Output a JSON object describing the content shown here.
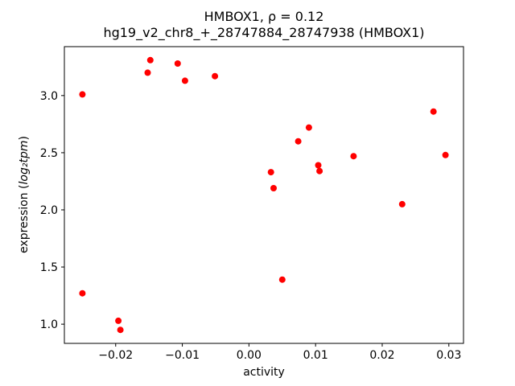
{
  "chart_data": {
    "type": "scatter",
    "title_line1": "HMBOX1, ρ = 0.12",
    "title_line2": "hg19_v2_chr8_+_28747884_28747938 (HMBOX1)",
    "xlabel": "activity",
    "ylabel_prefix": "expression (",
    "ylabel_math": "log₂tpm",
    "ylabel_suffix": ")",
    "marker_color": "#ff0000",
    "grid": false,
    "legend": "none",
    "xlim": [
      -0.0277,
      0.0322
    ],
    "ylim": [
      0.832,
      3.428
    ],
    "xticks": [
      -0.02,
      -0.01,
      0.0,
      0.01,
      0.02,
      0.03
    ],
    "xtick_labels": [
      "−0.02",
      "−0.01",
      "0.00",
      "0.01",
      "0.02",
      "0.03"
    ],
    "yticks": [
      1.0,
      1.5,
      2.0,
      2.5,
      3.0
    ],
    "ytick_labels": [
      "1.0",
      "1.5",
      "2.0",
      "2.5",
      "3.0"
    ],
    "points": [
      [
        -0.025,
        3.01
      ],
      [
        -0.025,
        1.27
      ],
      [
        -0.0196,
        1.03
      ],
      [
        -0.0193,
        0.95
      ],
      [
        -0.0152,
        3.2
      ],
      [
        -0.0148,
        3.31
      ],
      [
        -0.0107,
        3.28
      ],
      [
        -0.0096,
        3.13
      ],
      [
        -0.0051,
        3.17
      ],
      [
        0.0033,
        2.33
      ],
      [
        0.0037,
        2.19
      ],
      [
        0.005,
        1.39
      ],
      [
        0.0074,
        2.6
      ],
      [
        0.009,
        2.72
      ],
      [
        0.0104,
        2.39
      ],
      [
        0.0106,
        2.34
      ],
      [
        0.0157,
        2.47
      ],
      [
        0.023,
        2.05
      ],
      [
        0.0277,
        2.86
      ],
      [
        0.0295,
        2.48
      ]
    ]
  }
}
